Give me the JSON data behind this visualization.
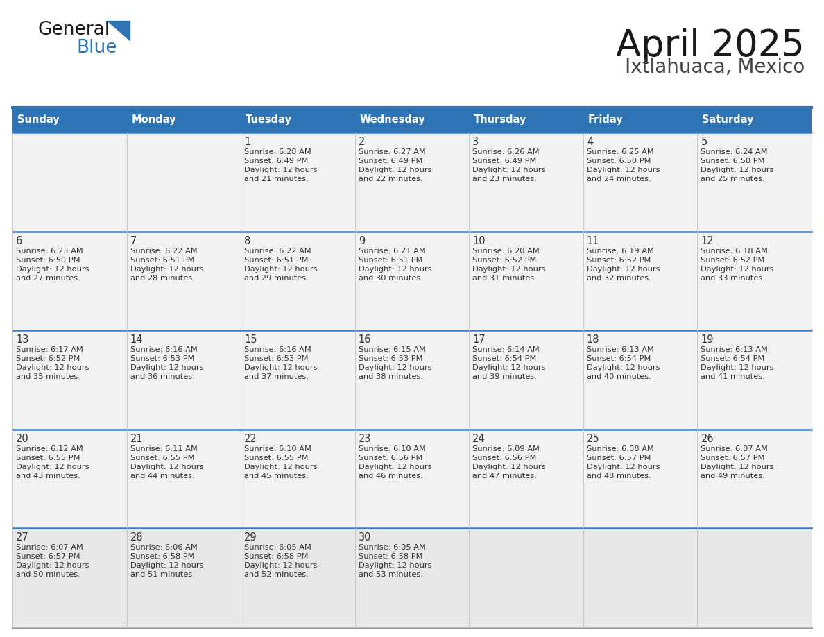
{
  "title": "April 2025",
  "subtitle": "Ixtlahuaca, Mexico",
  "header_bg": "#2E74B5",
  "header_text_color": "#FFFFFF",
  "cell_bg": "#F2F2F2",
  "last_row_bg": "#E8E8E8",
  "border_color": "#2E74B5",
  "separator_color": "#3A7DC9",
  "day_headers": [
    "Sunday",
    "Monday",
    "Tuesday",
    "Wednesday",
    "Thursday",
    "Friday",
    "Saturday"
  ],
  "days": [
    {
      "date": "1",
      "sunrise": "6:28 AM",
      "sunset": "6:49 PM",
      "daylight_min": 21,
      "col": 2,
      "row": 0
    },
    {
      "date": "2",
      "sunrise": "6:27 AM",
      "sunset": "6:49 PM",
      "daylight_min": 22,
      "col": 3,
      "row": 0
    },
    {
      "date": "3",
      "sunrise": "6:26 AM",
      "sunset": "6:49 PM",
      "daylight_min": 23,
      "col": 4,
      "row": 0
    },
    {
      "date": "4",
      "sunrise": "6:25 AM",
      "sunset": "6:50 PM",
      "daylight_min": 24,
      "col": 5,
      "row": 0
    },
    {
      "date": "5",
      "sunrise": "6:24 AM",
      "sunset": "6:50 PM",
      "daylight_min": 25,
      "col": 6,
      "row": 0
    },
    {
      "date": "6",
      "sunrise": "6:23 AM",
      "sunset": "6:50 PM",
      "daylight_min": 27,
      "col": 0,
      "row": 1
    },
    {
      "date": "7",
      "sunrise": "6:22 AM",
      "sunset": "6:51 PM",
      "daylight_min": 28,
      "col": 1,
      "row": 1
    },
    {
      "date": "8",
      "sunrise": "6:22 AM",
      "sunset": "6:51 PM",
      "daylight_min": 29,
      "col": 2,
      "row": 1
    },
    {
      "date": "9",
      "sunrise": "6:21 AM",
      "sunset": "6:51 PM",
      "daylight_min": 30,
      "col": 3,
      "row": 1
    },
    {
      "date": "10",
      "sunrise": "6:20 AM",
      "sunset": "6:52 PM",
      "daylight_min": 31,
      "col": 4,
      "row": 1
    },
    {
      "date": "11",
      "sunrise": "6:19 AM",
      "sunset": "6:52 PM",
      "daylight_min": 32,
      "col": 5,
      "row": 1
    },
    {
      "date": "12",
      "sunrise": "6:18 AM",
      "sunset": "6:52 PM",
      "daylight_min": 33,
      "col": 6,
      "row": 1
    },
    {
      "date": "13",
      "sunrise": "6:17 AM",
      "sunset": "6:52 PM",
      "daylight_min": 35,
      "col": 0,
      "row": 2
    },
    {
      "date": "14",
      "sunrise": "6:16 AM",
      "sunset": "6:53 PM",
      "daylight_min": 36,
      "col": 1,
      "row": 2
    },
    {
      "date": "15",
      "sunrise": "6:16 AM",
      "sunset": "6:53 PM",
      "daylight_min": 37,
      "col": 2,
      "row": 2
    },
    {
      "date": "16",
      "sunrise": "6:15 AM",
      "sunset": "6:53 PM",
      "daylight_min": 38,
      "col": 3,
      "row": 2
    },
    {
      "date": "17",
      "sunrise": "6:14 AM",
      "sunset": "6:54 PM",
      "daylight_min": 39,
      "col": 4,
      "row": 2
    },
    {
      "date": "18",
      "sunrise": "6:13 AM",
      "sunset": "6:54 PM",
      "daylight_min": 40,
      "col": 5,
      "row": 2
    },
    {
      "date": "19",
      "sunrise": "6:13 AM",
      "sunset": "6:54 PM",
      "daylight_min": 41,
      "col": 6,
      "row": 2
    },
    {
      "date": "20",
      "sunrise": "6:12 AM",
      "sunset": "6:55 PM",
      "daylight_min": 43,
      "col": 0,
      "row": 3
    },
    {
      "date": "21",
      "sunrise": "6:11 AM",
      "sunset": "6:55 PM",
      "daylight_min": 44,
      "col": 1,
      "row": 3
    },
    {
      "date": "22",
      "sunrise": "6:10 AM",
      "sunset": "6:55 PM",
      "daylight_min": 45,
      "col": 2,
      "row": 3
    },
    {
      "date": "23",
      "sunrise": "6:10 AM",
      "sunset": "6:56 PM",
      "daylight_min": 46,
      "col": 3,
      "row": 3
    },
    {
      "date": "24",
      "sunrise": "6:09 AM",
      "sunset": "6:56 PM",
      "daylight_min": 47,
      "col": 4,
      "row": 3
    },
    {
      "date": "25",
      "sunrise": "6:08 AM",
      "sunset": "6:57 PM",
      "daylight_min": 48,
      "col": 5,
      "row": 3
    },
    {
      "date": "26",
      "sunrise": "6:07 AM",
      "sunset": "6:57 PM",
      "daylight_min": 49,
      "col": 6,
      "row": 3
    },
    {
      "date": "27",
      "sunrise": "6:07 AM",
      "sunset": "6:57 PM",
      "daylight_min": 50,
      "col": 0,
      "row": 4
    },
    {
      "date": "28",
      "sunrise": "6:06 AM",
      "sunset": "6:58 PM",
      "daylight_min": 51,
      "col": 1,
      "row": 4
    },
    {
      "date": "29",
      "sunrise": "6:05 AM",
      "sunset": "6:58 PM",
      "daylight_min": 52,
      "col": 2,
      "row": 4
    },
    {
      "date": "30",
      "sunrise": "6:05 AM",
      "sunset": "6:58 PM",
      "daylight_min": 53,
      "col": 3,
      "row": 4
    }
  ],
  "num_rows": 5,
  "num_cols": 7,
  "logo_general_color": "#1a1a1a",
  "logo_blue_color": "#2E74B5",
  "title_color": "#1a1a1a",
  "subtitle_color": "#444444",
  "text_color": "#333333"
}
